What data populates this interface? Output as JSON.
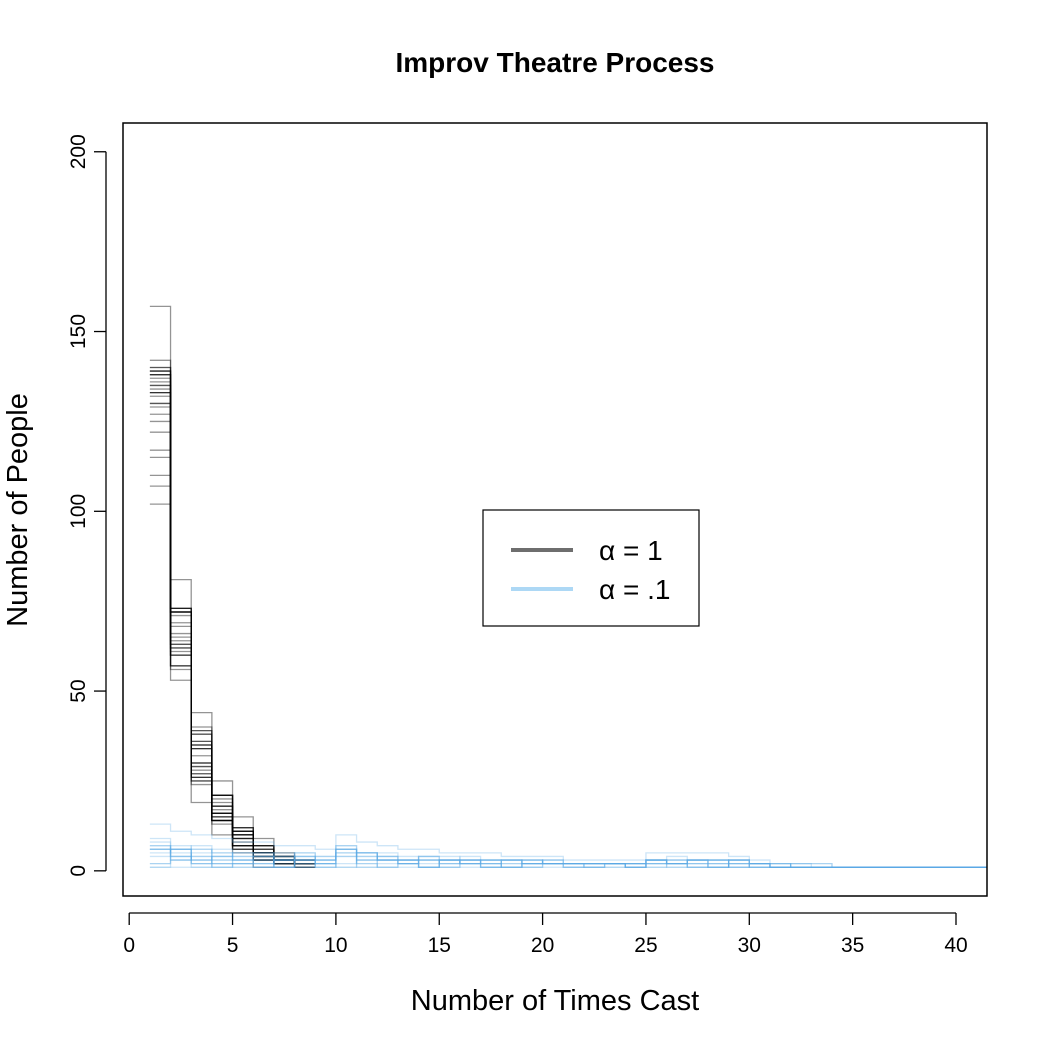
{
  "chart_data": {
    "type": "line",
    "title": "Improv Theatre Process",
    "xlabel": "Number of Times Cast",
    "ylabel": "Number of People",
    "xlim": [
      -0.3,
      41.5
    ],
    "ylim": [
      -7,
      208
    ],
    "x_ticks": [
      "0",
      "5",
      "10",
      "15",
      "20",
      "25",
      "30",
      "35",
      "40"
    ],
    "y_ticks": [
      "0",
      "50",
      "100",
      "150",
      "200"
    ],
    "grid": false,
    "legend": {
      "position": "center-right",
      "entries": [
        {
          "label": "α = 1",
          "color": "#6e6e6e"
        },
        {
          "label": "α = .1",
          "color": "#add8f5"
        }
      ]
    },
    "series": [
      {
        "group": "alpha_1",
        "color": "#000000",
        "min": [
          102,
          53,
          19,
          10,
          5,
          1,
          1,
          1
        ],
        "max": [
          157,
          81,
          44,
          25,
          15,
          9,
          5,
          3
        ],
        "typical": [
          125,
          65,
          32,
          17,
          9,
          5,
          3,
          2
        ],
        "x_start": 1,
        "n_runs": 30
      },
      {
        "group": "alpha_0.1",
        "color": "#5aa9e6",
        "min": [
          1,
          1,
          1,
          1,
          1,
          1,
          1,
          1,
          1,
          1,
          1,
          1,
          1,
          1,
          1,
          1,
          1,
          1,
          1,
          1,
          1,
          1,
          1,
          1,
          1,
          1,
          1,
          1,
          1,
          1,
          1,
          1,
          1,
          1,
          1,
          1,
          1,
          1,
          1,
          1,
          1
        ],
        "max": [
          13,
          11,
          10,
          9,
          8,
          8,
          7,
          7,
          6,
          10,
          8,
          7,
          6,
          6,
          5,
          5,
          5,
          4,
          4,
          4,
          3,
          3,
          3,
          3,
          5,
          5,
          5,
          5,
          4,
          3,
          2,
          2,
          2,
          1,
          1,
          1,
          1,
          1,
          1,
          1,
          1
        ],
        "x_start": 1,
        "n_runs": 15
      }
    ]
  }
}
